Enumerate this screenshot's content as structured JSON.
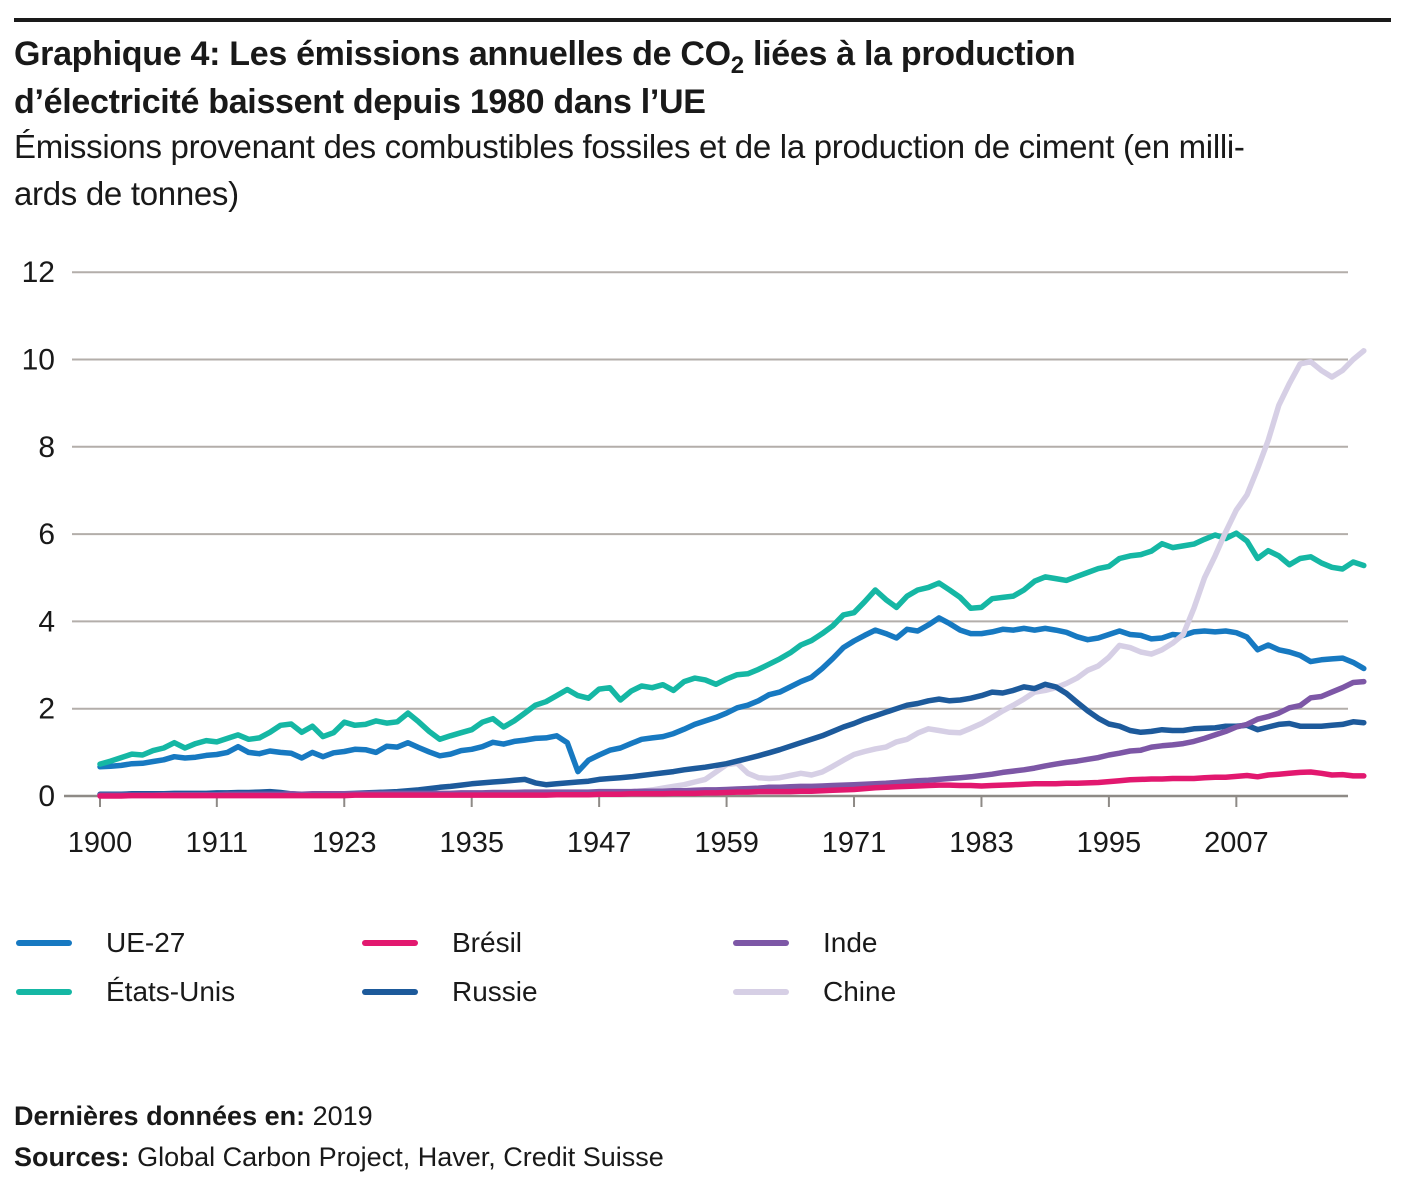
{
  "header": {
    "title_pre": "Graphique 4: Les émissions annuelles de CO",
    "title_sub": "2",
    "title_post": " liées à la production",
    "title_line2": "d’électricité baissent depuis 1980 dans l’UE",
    "subtitle_line1": "Émissions provenant des combustibles fossiles et de la production de ciment (en milli-",
    "subtitle_line2": "ards de tonnes)"
  },
  "chart_data": {
    "type": "line",
    "title": "Graphique 4: Les émissions annuelles de CO2 liées à la production d’électricité baissent depuis 1980 dans l’UE",
    "subtitle": "Émissions provenant des combustibles fossiles et de la production de ciment (en milliards de tonnes)",
    "x_start": 1900,
    "x_end": 2019,
    "x_ticks": [
      1900,
      1911,
      1923,
      1935,
      1947,
      1959,
      1971,
      1983,
      1995,
      2007
    ],
    "ylim": [
      0,
      12
    ],
    "y_ticks": [
      0,
      2,
      4,
      6,
      8,
      10,
      12
    ],
    "grid": "horizontal",
    "legend_position": "bottom",
    "colors": {
      "grid": "#b3aeaa",
      "axis": "#8e8a86",
      "text": "#191919"
    },
    "series": [
      {
        "name": "UE-27",
        "color": "#1779c1",
        "values": [
          0.67,
          0.68,
          0.7,
          0.74,
          0.75,
          0.79,
          0.83,
          0.9,
          0.87,
          0.89,
          0.93,
          0.95,
          1.0,
          1.13,
          1.0,
          0.97,
          1.03,
          1.0,
          0.98,
          0.87,
          1.0,
          0.9,
          0.99,
          1.02,
          1.07,
          1.06,
          1.0,
          1.14,
          1.12,
          1.22,
          1.11,
          1.01,
          0.92,
          0.96,
          1.04,
          1.07,
          1.13,
          1.23,
          1.19,
          1.25,
          1.28,
          1.32,
          1.33,
          1.38,
          1.22,
          0.56,
          0.82,
          0.94,
          1.05,
          1.1,
          1.2,
          1.3,
          1.33,
          1.36,
          1.43,
          1.53,
          1.64,
          1.72,
          1.8,
          1.9,
          2.02,
          2.08,
          2.18,
          2.32,
          2.38,
          2.5,
          2.62,
          2.72,
          2.92,
          3.15,
          3.4,
          3.55,
          3.68,
          3.8,
          3.72,
          3.62,
          3.82,
          3.78,
          3.92,
          4.08,
          3.95,
          3.8,
          3.72,
          3.72,
          3.76,
          3.82,
          3.8,
          3.84,
          3.8,
          3.84,
          3.8,
          3.75,
          3.65,
          3.58,
          3.62,
          3.7,
          3.78,
          3.7,
          3.68,
          3.6,
          3.62,
          3.7,
          3.68,
          3.76,
          3.78,
          3.76,
          3.78,
          3.74,
          3.64,
          3.35,
          3.46,
          3.35,
          3.3,
          3.22,
          3.08,
          3.12,
          3.14,
          3.16,
          3.06,
          2.92
        ]
      },
      {
        "name": "États-Unis",
        "color": "#15b7a4",
        "values": [
          0.73,
          0.8,
          0.88,
          0.96,
          0.94,
          1.04,
          1.1,
          1.22,
          1.1,
          1.2,
          1.27,
          1.24,
          1.32,
          1.4,
          1.3,
          1.33,
          1.46,
          1.62,
          1.65,
          1.46,
          1.6,
          1.36,
          1.45,
          1.69,
          1.62,
          1.64,
          1.72,
          1.67,
          1.7,
          1.9,
          1.7,
          1.48,
          1.3,
          1.38,
          1.45,
          1.52,
          1.69,
          1.77,
          1.58,
          1.72,
          1.9,
          2.08,
          2.16,
          2.3,
          2.44,
          2.3,
          2.24,
          2.45,
          2.48,
          2.2,
          2.4,
          2.52,
          2.48,
          2.55,
          2.42,
          2.62,
          2.7,
          2.66,
          2.56,
          2.68,
          2.78,
          2.8,
          2.9,
          3.02,
          3.14,
          3.28,
          3.46,
          3.56,
          3.72,
          3.9,
          4.15,
          4.2,
          4.45,
          4.72,
          4.5,
          4.32,
          4.58,
          4.72,
          4.78,
          4.88,
          4.72,
          4.55,
          4.3,
          4.32,
          4.52,
          4.55,
          4.58,
          4.72,
          4.92,
          5.02,
          4.98,
          4.94,
          5.03,
          5.12,
          5.21,
          5.26,
          5.44,
          5.5,
          5.53,
          5.61,
          5.78,
          5.69,
          5.73,
          5.77,
          5.88,
          5.98,
          5.9,
          6.02,
          5.84,
          5.44,
          5.62,
          5.5,
          5.3,
          5.44,
          5.48,
          5.34,
          5.24,
          5.2,
          5.36,
          5.28
        ]
      },
      {
        "name": "Chine",
        "color": "#d6cfe5",
        "values": [
          0.01,
          0.01,
          0.01,
          0.01,
          0.01,
          0.01,
          0.01,
          0.01,
          0.01,
          0.01,
          0.02,
          0.02,
          0.02,
          0.02,
          0.02,
          0.02,
          0.02,
          0.02,
          0.02,
          0.02,
          0.02,
          0.02,
          0.02,
          0.03,
          0.03,
          0.03,
          0.03,
          0.03,
          0.03,
          0.03,
          0.03,
          0.03,
          0.04,
          0.04,
          0.04,
          0.05,
          0.05,
          0.05,
          0.04,
          0.05,
          0.06,
          0.06,
          0.06,
          0.05,
          0.04,
          0.03,
          0.04,
          0.05,
          0.05,
          0.06,
          0.08,
          0.11,
          0.14,
          0.18,
          0.22,
          0.26,
          0.32,
          0.38,
          0.55,
          0.72,
          0.75,
          0.52,
          0.42,
          0.4,
          0.42,
          0.47,
          0.52,
          0.48,
          0.55,
          0.68,
          0.82,
          0.95,
          1.02,
          1.08,
          1.12,
          1.24,
          1.3,
          1.44,
          1.54,
          1.5,
          1.46,
          1.45,
          1.55,
          1.66,
          1.8,
          1.95,
          2.08,
          2.22,
          2.38,
          2.42,
          2.48,
          2.58,
          2.7,
          2.88,
          2.98,
          3.18,
          3.45,
          3.4,
          3.3,
          3.25,
          3.35,
          3.5,
          3.7,
          4.3,
          5.0,
          5.5,
          6.05,
          6.55,
          6.9,
          7.5,
          8.15,
          8.95,
          9.45,
          9.9,
          9.95,
          9.75,
          9.6,
          9.75,
          10.0,
          10.2
        ]
      },
      {
        "name": "Russie",
        "color": "#1d5a9b",
        "values": [
          0.04,
          0.04,
          0.04,
          0.05,
          0.05,
          0.05,
          0.05,
          0.06,
          0.06,
          0.06,
          0.06,
          0.07,
          0.07,
          0.08,
          0.08,
          0.09,
          0.1,
          0.08,
          0.05,
          0.03,
          0.02,
          0.03,
          0.04,
          0.05,
          0.06,
          0.07,
          0.08,
          0.09,
          0.1,
          0.12,
          0.14,
          0.17,
          0.2,
          0.22,
          0.25,
          0.28,
          0.3,
          0.32,
          0.34,
          0.36,
          0.38,
          0.3,
          0.26,
          0.28,
          0.3,
          0.32,
          0.34,
          0.38,
          0.4,
          0.42,
          0.44,
          0.47,
          0.5,
          0.53,
          0.56,
          0.6,
          0.63,
          0.66,
          0.7,
          0.74,
          0.8,
          0.86,
          0.92,
          0.99,
          1.06,
          1.14,
          1.22,
          1.3,
          1.38,
          1.48,
          1.58,
          1.66,
          1.76,
          1.84,
          1.92,
          2.0,
          2.08,
          2.12,
          2.18,
          2.22,
          2.18,
          2.2,
          2.24,
          2.3,
          2.38,
          2.36,
          2.42,
          2.5,
          2.46,
          2.56,
          2.5,
          2.35,
          2.15,
          1.95,
          1.78,
          1.65,
          1.6,
          1.5,
          1.46,
          1.48,
          1.52,
          1.5,
          1.5,
          1.54,
          1.55,
          1.56,
          1.6,
          1.6,
          1.62,
          1.52,
          1.58,
          1.64,
          1.66,
          1.6,
          1.6,
          1.6,
          1.62,
          1.64,
          1.7,
          1.68
        ]
      },
      {
        "name": "Inde",
        "color": "#7d57a6",
        "values": [
          0.02,
          0.02,
          0.02,
          0.02,
          0.02,
          0.02,
          0.03,
          0.03,
          0.03,
          0.03,
          0.03,
          0.03,
          0.04,
          0.04,
          0.04,
          0.04,
          0.04,
          0.04,
          0.05,
          0.04,
          0.05,
          0.05,
          0.05,
          0.05,
          0.05,
          0.06,
          0.06,
          0.06,
          0.06,
          0.06,
          0.06,
          0.06,
          0.06,
          0.06,
          0.07,
          0.07,
          0.07,
          0.08,
          0.08,
          0.08,
          0.09,
          0.09,
          0.09,
          0.09,
          0.09,
          0.09,
          0.09,
          0.1,
          0.1,
          0.1,
          0.1,
          0.11,
          0.11,
          0.11,
          0.12,
          0.12,
          0.13,
          0.14,
          0.14,
          0.15,
          0.16,
          0.17,
          0.18,
          0.2,
          0.2,
          0.21,
          0.22,
          0.22,
          0.23,
          0.24,
          0.25,
          0.26,
          0.27,
          0.28,
          0.29,
          0.31,
          0.33,
          0.35,
          0.36,
          0.38,
          0.4,
          0.42,
          0.44,
          0.47,
          0.5,
          0.54,
          0.57,
          0.6,
          0.64,
          0.69,
          0.73,
          0.77,
          0.8,
          0.84,
          0.88,
          0.94,
          0.98,
          1.03,
          1.05,
          1.12,
          1.15,
          1.17,
          1.2,
          1.25,
          1.32,
          1.4,
          1.48,
          1.58,
          1.64,
          1.76,
          1.82,
          1.9,
          2.02,
          2.07,
          2.25,
          2.28,
          2.38,
          2.48,
          2.6,
          2.62
        ]
      },
      {
        "name": "Brésil",
        "color": "#e2186f",
        "values": [
          0.0,
          0.0,
          0.0,
          0.01,
          0.01,
          0.01,
          0.01,
          0.01,
          0.01,
          0.01,
          0.01,
          0.01,
          0.01,
          0.01,
          0.01,
          0.01,
          0.01,
          0.01,
          0.01,
          0.01,
          0.01,
          0.01,
          0.01,
          0.01,
          0.02,
          0.02,
          0.02,
          0.02,
          0.02,
          0.02,
          0.02,
          0.02,
          0.02,
          0.02,
          0.02,
          0.02,
          0.02,
          0.02,
          0.02,
          0.02,
          0.02,
          0.02,
          0.02,
          0.03,
          0.03,
          0.03,
          0.03,
          0.04,
          0.04,
          0.04,
          0.05,
          0.05,
          0.05,
          0.05,
          0.06,
          0.06,
          0.06,
          0.07,
          0.07,
          0.08,
          0.09,
          0.09,
          0.1,
          0.1,
          0.1,
          0.1,
          0.11,
          0.11,
          0.12,
          0.13,
          0.14,
          0.15,
          0.17,
          0.19,
          0.2,
          0.21,
          0.22,
          0.23,
          0.24,
          0.25,
          0.25,
          0.24,
          0.24,
          0.23,
          0.24,
          0.25,
          0.26,
          0.27,
          0.28,
          0.28,
          0.28,
          0.29,
          0.29,
          0.3,
          0.31,
          0.33,
          0.35,
          0.37,
          0.38,
          0.39,
          0.39,
          0.4,
          0.4,
          0.4,
          0.42,
          0.43,
          0.43,
          0.45,
          0.47,
          0.44,
          0.48,
          0.5,
          0.52,
          0.54,
          0.55,
          0.52,
          0.48,
          0.49,
          0.46,
          0.46
        ]
      }
    ]
  },
  "legend": {
    "items": [
      {
        "label": "UE-27",
        "color": "#1779c1",
        "row": 0,
        "col": 0
      },
      {
        "label": "Brésil",
        "color": "#e2186f",
        "row": 0,
        "col": 1
      },
      {
        "label": "Inde",
        "color": "#7d57a6",
        "row": 0,
        "col": 2
      },
      {
        "label": "États-Unis",
        "color": "#15b7a4",
        "row": 1,
        "col": 0
      },
      {
        "label": "Russie",
        "color": "#1d5a9b",
        "row": 1,
        "col": 1
      },
      {
        "label": "Chine",
        "color": "#d6cfe5",
        "row": 1,
        "col": 2
      }
    ]
  },
  "footer": {
    "last_data_label": "Dernières données en:",
    "last_data_value": "2019",
    "sources_label": "Sources:",
    "sources_value": "Global Carbon Project, Haver, Credit Suisse"
  }
}
